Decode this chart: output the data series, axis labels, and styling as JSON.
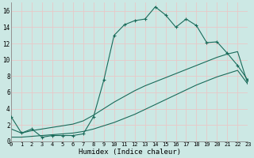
{
  "title": "",
  "xlabel": "Humidex (Indice chaleur)",
  "bg_color": "#cce8e4",
  "grid_color": "#e8c8c8",
  "line_color": "#1a6b5a",
  "xlim": [
    0,
    23
  ],
  "ylim": [
    0,
    17
  ],
  "xtick_labels": [
    "0",
    "1",
    "2",
    "3",
    "4",
    "5",
    "6",
    "7",
    "8",
    "9",
    "10",
    "11",
    "12",
    "13",
    "14",
    "15",
    "16",
    "17",
    "18",
    "19",
    "20",
    "21",
    "22",
    "23"
  ],
  "ytick_labels": [
    "0",
    "2",
    "4",
    "6",
    "8",
    "10",
    "12",
    "14",
    "16"
  ],
  "ytick_vals": [
    0,
    2,
    4,
    6,
    8,
    10,
    12,
    14,
    16
  ],
  "series": [
    {
      "x": [
        0,
        1,
        2,
        3,
        4,
        5,
        6,
        7,
        8,
        9,
        10,
        11,
        12,
        13,
        14,
        15,
        16,
        17,
        18,
        19,
        20,
        21,
        22,
        23
      ],
      "y": [
        3.0,
        1.0,
        1.5,
        0.5,
        0.7,
        0.7,
        0.7,
        0.9,
        3.0,
        7.5,
        13.0,
        14.3,
        14.8,
        15.0,
        16.5,
        15.5,
        14.0,
        15.0,
        14.2,
        12.1,
        12.2,
        10.8,
        9.3,
        7.5
      ],
      "marker": "+"
    },
    {
      "x": [
        0,
        1,
        2,
        3,
        4,
        5,
        6,
        7,
        8,
        9,
        10,
        11,
        12,
        13,
        14,
        15,
        16,
        17,
        18,
        19,
        20,
        21,
        22,
        23
      ],
      "y": [
        1.5,
        1.0,
        1.3,
        1.5,
        1.7,
        1.9,
        2.1,
        2.5,
        3.2,
        4.0,
        4.8,
        5.5,
        6.2,
        6.8,
        7.3,
        7.8,
        8.3,
        8.8,
        9.3,
        9.8,
        10.3,
        10.7,
        11.0,
        7.0
      ],
      "marker": null
    },
    {
      "x": [
        0,
        1,
        2,
        3,
        4,
        5,
        6,
        7,
        8,
        9,
        10,
        11,
        12,
        13,
        14,
        15,
        16,
        17,
        18,
        19,
        20,
        21,
        22,
        23
      ],
      "y": [
        0.5,
        0.5,
        0.6,
        0.7,
        0.8,
        0.9,
        1.0,
        1.2,
        1.5,
        1.9,
        2.3,
        2.8,
        3.3,
        3.9,
        4.5,
        5.1,
        5.7,
        6.3,
        6.9,
        7.4,
        7.9,
        8.3,
        8.7,
        7.0
      ],
      "marker": null
    }
  ]
}
